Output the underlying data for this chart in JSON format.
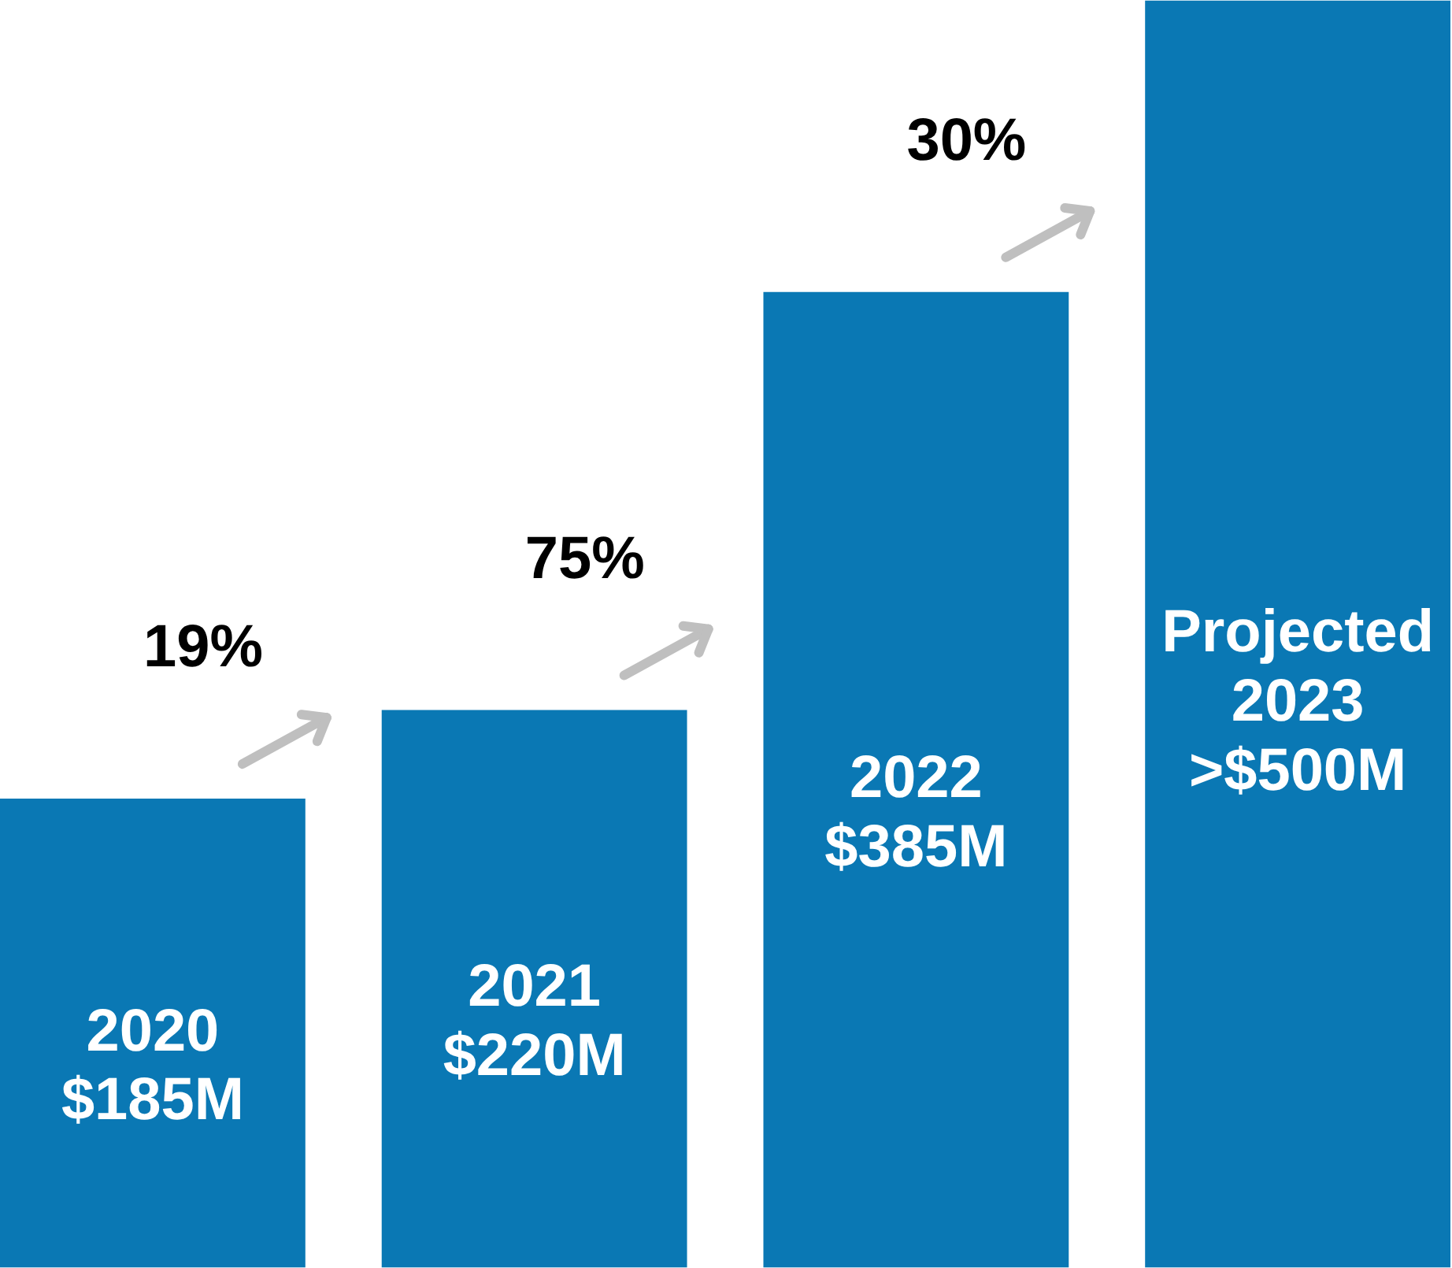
{
  "chart_data": {
    "type": "bar",
    "categories": [
      "2020",
      "2021",
      "2022",
      "Projected 2023"
    ],
    "values": [
      185,
      220,
      385,
      500
    ],
    "value_labels": [
      "$185M",
      "$220M",
      "$385M",
      ">$500M"
    ],
    "color": "#0a78b4",
    "tick_labels": false,
    "annotations": [
      "19%",
      "75%",
      "30%"
    ]
  }
}
